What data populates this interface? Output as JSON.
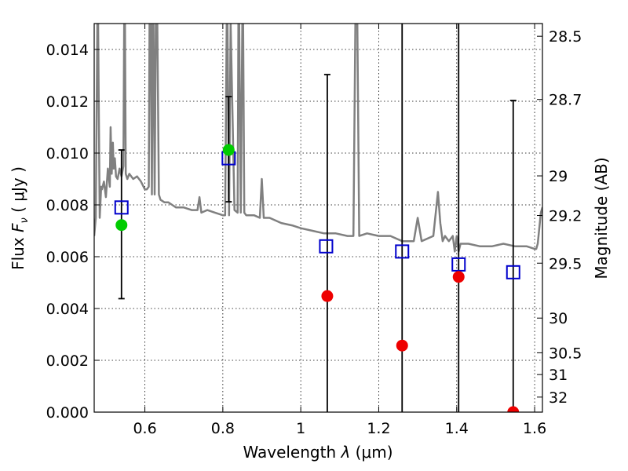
{
  "chart_data": {
    "type": "scatter",
    "title": "",
    "xlabel_prefix": "Wavelength  ",
    "xlabel_symbol": "λ",
    "xlabel_unit": " (μm)",
    "ylabel_prefix": "Flux  ",
    "ylabel_symbol": "F",
    "ylabel_sub": "ν",
    "ylabel_unit": "  ( μJy )",
    "y2label": "Magnitude (AB)",
    "xlim": [
      0.47,
      1.62
    ],
    "ylim": [
      0.0,
      0.015
    ],
    "grid": true,
    "x_ticks": [
      0.6,
      0.8,
      1.0,
      1.2,
      1.4,
      1.6
    ],
    "x_tick_labels": [
      "0.6",
      "0.8",
      "1",
      "1.2",
      "1.4",
      "1.6"
    ],
    "y_ticks": [
      0.0,
      0.002,
      0.004,
      0.006,
      0.008,
      0.01,
      0.012,
      0.014
    ],
    "y_tick_labels": [
      "0.000",
      "0.002",
      "0.004",
      "0.006",
      "0.008",
      "0.010",
      "0.012",
      "0.014"
    ],
    "y2_ticks": [
      {
        "label": "28.5",
        "flux": 0.01451
      },
      {
        "label": "28.7",
        "flux": 0.01207
      },
      {
        "label": "29",
        "flux": 0.00912
      },
      {
        "label": "29.2",
        "flux": 0.00759
      },
      {
        "label": "29.5",
        "flux": 0.00575
      },
      {
        "label": "30",
        "flux": 0.00363
      },
      {
        "label": "30.5",
        "flux": 0.00229
      },
      {
        "label": "31",
        "flux": 0.00145
      },
      {
        "label": "32",
        "flux": 0.00058
      }
    ],
    "colors": {
      "model": "#808080",
      "model_photometry": "#0000cc",
      "observed_detection": "#00cc00",
      "observed_limit": "#ee0000",
      "errorbar": "#000000"
    },
    "series": [
      {
        "name": "model_photometry",
        "marker": "open-square",
        "x": [
          0.54,
          0.815,
          1.065,
          1.26,
          1.405,
          1.545
        ],
        "y": [
          0.0079,
          0.0098,
          0.0064,
          0.0062,
          0.0057,
          0.0054
        ]
      },
      {
        "name": "observed_photometry",
        "marker": "filled-circle",
        "x": [
          0.54,
          0.815,
          1.068,
          1.26,
          1.405,
          1.545
        ],
        "y": [
          0.00722,
          0.01012,
          0.00448,
          0.00257,
          0.00522,
          0.0
        ],
        "yerr_low": [
          0.00438,
          0.00812,
          0.0,
          0.0,
          0.0,
          0.0
        ],
        "yerr_high": [
          0.01012,
          0.01218,
          0.01303,
          0.015,
          0.015,
          0.01203
        ],
        "capped_high": [
          true,
          true,
          true,
          false,
          false,
          true
        ],
        "capped_low": [
          true,
          true,
          false,
          false,
          false,
          false
        ],
        "marker_colors": [
          "observed_detection",
          "observed_detection",
          "observed_limit",
          "observed_limit",
          "observed_limit",
          "observed_limit"
        ]
      },
      {
        "name": "model_spectrum",
        "marker": "line",
        "x": [
          0.47,
          0.474,
          0.478,
          0.48,
          0.484,
          0.488,
          0.49,
          0.495,
          0.5,
          0.505,
          0.51,
          0.512,
          0.515,
          0.518,
          0.52,
          0.523,
          0.526,
          0.53,
          0.535,
          0.54,
          0.545,
          0.547,
          0.549,
          0.551,
          0.555,
          0.56,
          0.57,
          0.58,
          0.59,
          0.6,
          0.605,
          0.61,
          0.612,
          0.615,
          0.618,
          0.62,
          0.622,
          0.625,
          0.628,
          0.632,
          0.636,
          0.64,
          0.65,
          0.66,
          0.67,
          0.68,
          0.7,
          0.72,
          0.735,
          0.74,
          0.745,
          0.76,
          0.78,
          0.8,
          0.806,
          0.81,
          0.812,
          0.816,
          0.82,
          0.83,
          0.838,
          0.84,
          0.842,
          0.846,
          0.85,
          0.852,
          0.855,
          0.86,
          0.88,
          0.895,
          0.9,
          0.905,
          0.92,
          0.95,
          0.98,
          1.0,
          1.03,
          1.06,
          1.09,
          1.12,
          1.135,
          1.14,
          1.145,
          1.15,
          1.17,
          1.2,
          1.23,
          1.26,
          1.29,
          1.3,
          1.31,
          1.34,
          1.352,
          1.358,
          1.364,
          1.37,
          1.38,
          1.39,
          1.395,
          1.4,
          1.405,
          1.41,
          1.43,
          1.46,
          1.49,
          1.52,
          1.55,
          1.58,
          1.6,
          1.604,
          1.608,
          1.612,
          1.616,
          1.62
        ],
        "y": [
          0.0068,
          0.0075,
          0.015,
          0.015,
          0.0075,
          0.0087,
          0.0086,
          0.0089,
          0.0083,
          0.0094,
          0.0087,
          0.011,
          0.0092,
          0.0104,
          0.0094,
          0.0098,
          0.0091,
          0.009,
          0.0094,
          0.0091,
          0.0095,
          0.015,
          0.015,
          0.0092,
          0.009,
          0.0092,
          0.009,
          0.0091,
          0.0089,
          0.0086,
          0.0086,
          0.0087,
          0.015,
          0.015,
          0.0084,
          0.015,
          0.015,
          0.0084,
          0.015,
          0.015,
          0.0084,
          0.0082,
          0.0081,
          0.0081,
          0.008,
          0.0079,
          0.0079,
          0.0078,
          0.0078,
          0.0083,
          0.0077,
          0.0078,
          0.0077,
          0.0076,
          0.0076,
          0.015,
          0.015,
          0.0076,
          0.015,
          0.0078,
          0.0077,
          0.015,
          0.015,
          0.0077,
          0.015,
          0.015,
          0.0077,
          0.0076,
          0.0076,
          0.0075,
          0.009,
          0.0075,
          0.0075,
          0.0073,
          0.0072,
          0.0071,
          0.007,
          0.0069,
          0.0069,
          0.0068,
          0.0068,
          0.015,
          0.015,
          0.0068,
          0.0069,
          0.0068,
          0.0068,
          0.0066,
          0.0066,
          0.0075,
          0.0066,
          0.0068,
          0.0085,
          0.0073,
          0.0066,
          0.0068,
          0.0066,
          0.0068,
          0.0062,
          0.0068,
          0.0062,
          0.0065,
          0.0065,
          0.0064,
          0.0064,
          0.0065,
          0.0064,
          0.0064,
          0.0063,
          0.0063,
          0.0065,
          0.0071,
          0.0077,
          0.0079
        ]
      }
    ]
  }
}
